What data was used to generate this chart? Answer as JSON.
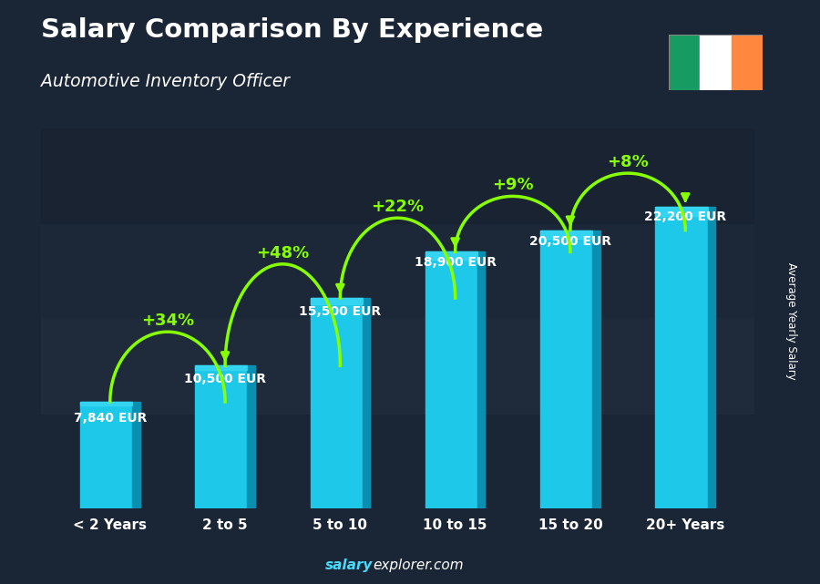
{
  "title": "Salary Comparison By Experience",
  "subtitle": "Automotive Inventory Officer",
  "categories": [
    "< 2 Years",
    "2 to 5",
    "5 to 10",
    "10 to 15",
    "15 to 20",
    "20+ Years"
  ],
  "values": [
    7840,
    10500,
    15500,
    18900,
    20500,
    22200
  ],
  "labels": [
    "7,840 EUR",
    "10,500 EUR",
    "15,500 EUR",
    "18,900 EUR",
    "20,500 EUR",
    "22,200 EUR"
  ],
  "pct_changes": [
    "+34%",
    "+48%",
    "+22%",
    "+9%",
    "+8%"
  ],
  "bar_color_main": "#1EC8E8",
  "bar_color_right": "#0A8FB0",
  "bar_color_highlight": "#3DDAF5",
  "pct_color": "#88FF00",
  "label_color": "#FFFFFF",
  "title_color": "#FFFFFF",
  "subtitle_color": "#FFFFFF",
  "bg_color": "#1a2535",
  "footer_salary_color": "#44DDFF",
  "footer_explorer_color": "#FFFFFF",
  "footer_text_salary": "salary",
  "footer_text_rest": "explorer.com",
  "y_label": "Average Yearly Salary",
  "ylim": [
    0,
    28000
  ],
  "bar_width": 0.52,
  "arc_color": "#88FF00",
  "arc_lw": 2.5
}
